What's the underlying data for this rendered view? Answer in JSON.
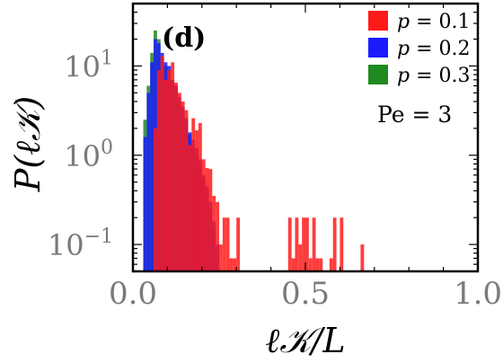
{
  "chart_data": {
    "type": "histogram",
    "panel_label": "(d)",
    "xlabel": "ℓ𝒦/L",
    "ylabel": "P(ℓ𝒦)",
    "annotation": "Pe = 3",
    "xlim": [
      0.0,
      1.0
    ],
    "ylim": [
      0.05,
      50
    ],
    "yscale": "log",
    "bin_width": 0.01,
    "x_ticks": [
      "0.0",
      "0.5",
      "1.0"
    ],
    "y_ticks": [
      {
        "base": "10",
        "exp": "1",
        "value": 10
      },
      {
        "base": "10",
        "exp": "0",
        "value": 1
      },
      {
        "base": "10",
        "exp": "−1",
        "value": 0.1
      }
    ],
    "legend_location": "top-right",
    "series": [
      {
        "name": "p = 0.1",
        "label_var": "p",
        "label_val": "= 0.1",
        "color": "#ff1a1a",
        "opacity": 0.85,
        "bins_x": [
          0.06,
          0.07,
          0.08,
          0.09,
          0.1,
          0.11,
          0.12,
          0.13,
          0.14,
          0.15,
          0.16,
          0.17,
          0.18,
          0.19,
          0.2,
          0.21,
          0.22,
          0.23,
          0.24,
          0.25,
          0.26,
          0.27,
          0.28,
          0.29,
          0.3,
          0.31,
          0.32,
          0.33,
          0.34,
          0.35,
          0.36,
          0.37,
          0.38,
          0.39,
          0.4,
          0.41,
          0.42,
          0.43,
          0.44,
          0.45,
          0.46,
          0.47,
          0.48,
          0.49,
          0.5,
          0.51,
          0.52,
          0.53,
          0.54,
          0.55,
          0.56,
          0.57,
          0.58,
          0.59,
          0.6,
          0.61,
          0.62,
          0.63,
          0.64,
          0.65,
          0.66
        ],
        "values": [
          2.0,
          9.0,
          13.0,
          7.0,
          9.0,
          11.0,
          6.5,
          5.0,
          4.0,
          3.2,
          1.3,
          2.6,
          1.9,
          2.3,
          0.9,
          0.72,
          0.7,
          0.35,
          0.3,
          0.1,
          0.2,
          0.2,
          0.07,
          0.07,
          0.2,
          0,
          0,
          0,
          0,
          0,
          0,
          0,
          0,
          0,
          0,
          0,
          0,
          0,
          0,
          0.2,
          0.07,
          0.2,
          0.1,
          0.2,
          0.2,
          0.07,
          0.2,
          0.07,
          0.07,
          0,
          0,
          0.07,
          0.2,
          0,
          0.2,
          0,
          0,
          0,
          0,
          0,
          0.1
        ]
      },
      {
        "name": "p = 0.2",
        "label_var": "p",
        "label_val": "= 0.2",
        "color": "#1a1aff",
        "opacity": 0.85,
        "bins_x": [
          0.03,
          0.04,
          0.05,
          0.06,
          0.07,
          0.08,
          0.09,
          0.1,
          0.11,
          0.12,
          0.13,
          0.14,
          0.15,
          0.16,
          0.17,
          0.18,
          0.19,
          0.2,
          0.21,
          0.22,
          0.23,
          0.24
        ],
        "values": [
          1.6,
          5.0,
          11.0,
          20.0,
          18.0,
          14.0,
          11.0,
          10.0,
          7.0,
          6.0,
          4.5,
          3.5,
          2.6,
          1.8,
          1.5,
          1.2,
          0.9,
          0.6,
          0.45,
          0.3,
          0.18,
          0.1
        ]
      },
      {
        "name": "p = 0.3",
        "label_var": "p",
        "label_val": "= 0.3",
        "color": "#1f8a1f",
        "opacity": 0.85,
        "bins_x": [
          0.03,
          0.04,
          0.05,
          0.06,
          0.07,
          0.08,
          0.09,
          0.1,
          0.11,
          0.12,
          0.13,
          0.14,
          0.15,
          0.16,
          0.17,
          0.18,
          0.19,
          0.2,
          0.21,
          0.22,
          0.23,
          0.24
        ],
        "values": [
          2.5,
          6.0,
          14.0,
          25.0,
          20.0,
          12.0,
          10.0,
          9.0,
          6.5,
          5.5,
          4.0,
          3.0,
          2.4,
          1.7,
          1.3,
          1.0,
          0.8,
          0.55,
          0.4,
          0.25,
          0.15,
          0.08
        ]
      }
    ]
  }
}
